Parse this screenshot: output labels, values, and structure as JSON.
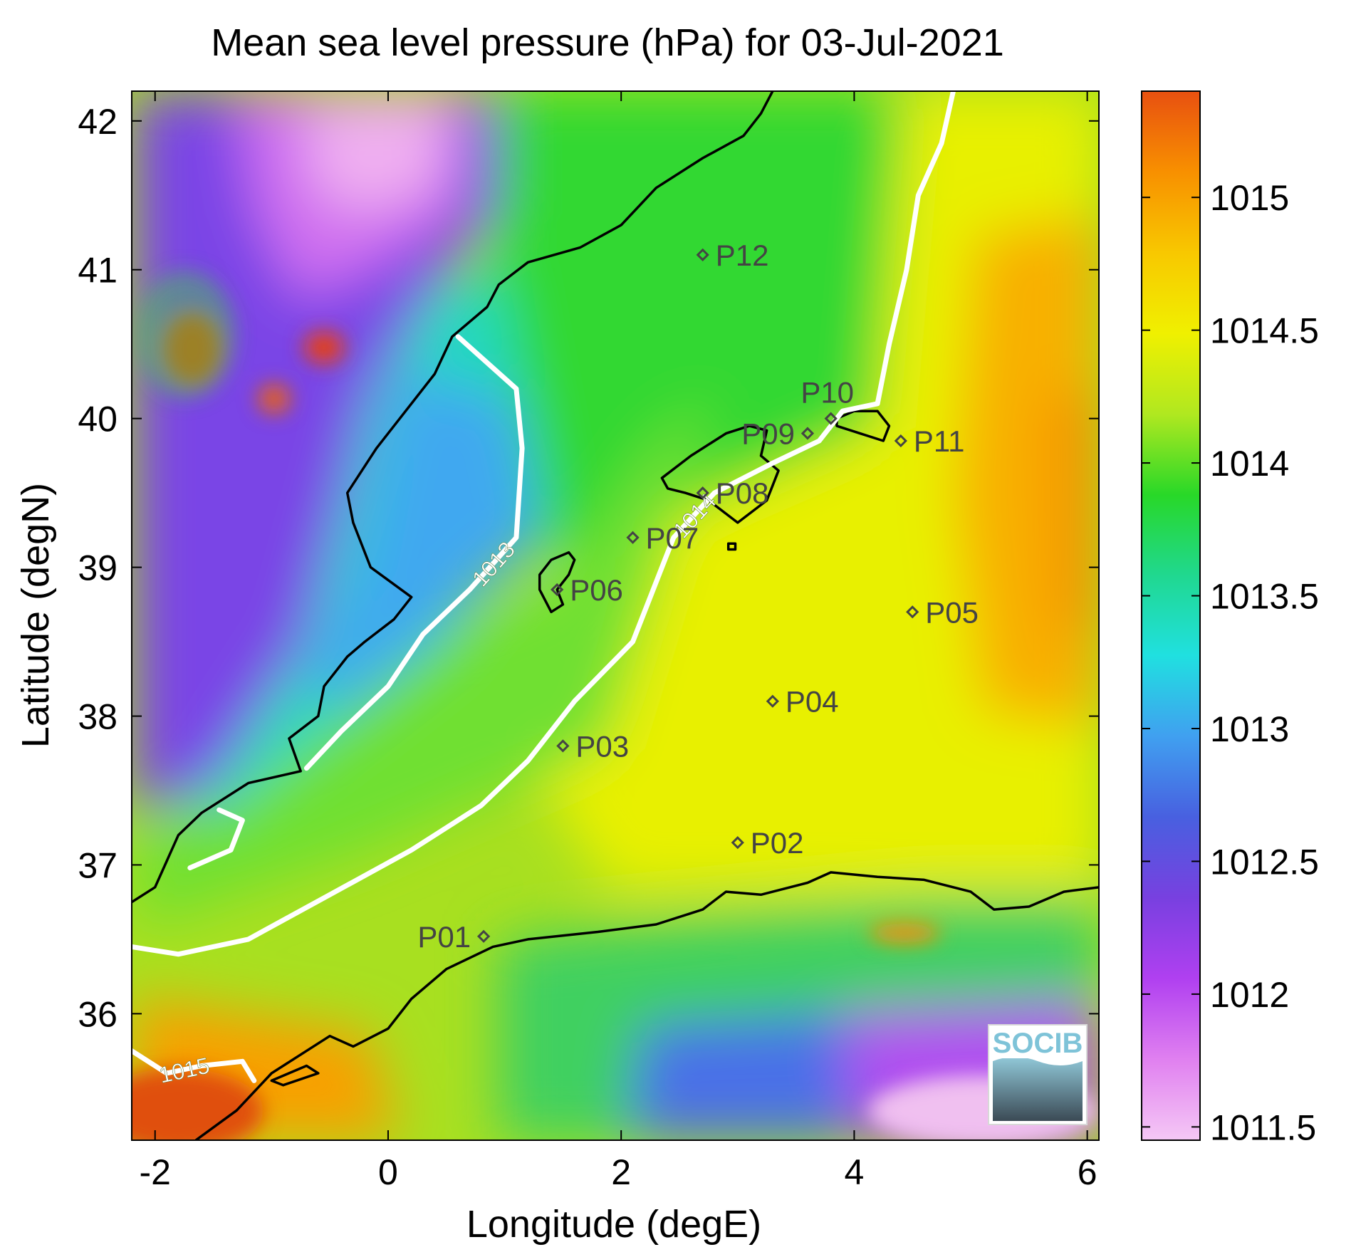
{
  "title": "Mean sea level pressure (hPa) for 03-Jul-2021",
  "xlabel": "Longitude (degE)",
  "ylabel": "Latitude (degN)",
  "logo_text": "SOCIB",
  "colorbar": {
    "min": 1011.45,
    "max": 1015.4,
    "ticks": [
      1011.5,
      1012,
      1012.5,
      1013,
      1013.5,
      1014,
      1014.5,
      1015
    ],
    "tick_labels": [
      "1011.5",
      "1012",
      "1012.5",
      "1013",
      "1013.5",
      "1014",
      "1014.5",
      "1015"
    ]
  },
  "chart_data": {
    "type": "heatmap",
    "xlim": [
      -2.2,
      6.1
    ],
    "ylim": [
      35.15,
      42.2
    ],
    "x_ticks": [
      -2,
      0,
      2,
      4,
      6
    ],
    "x_tick_labels": [
      "-2",
      "0",
      "2",
      "4",
      "6"
    ],
    "y_ticks": [
      36,
      37,
      38,
      39,
      40,
      41,
      42
    ],
    "y_tick_labels": [
      "36",
      "37",
      "38",
      "39",
      "40",
      "41",
      "42"
    ],
    "grid": false,
    "colormap_colors": [
      "#F5C8F5",
      "#E080F0",
      "#B040F0",
      "#7840E0",
      "#4860E0",
      "#40A0F0",
      "#20E0E0",
      "#20D890",
      "#28D828",
      "#B0E820",
      "#F0F000",
      "#F8C800",
      "#F89000",
      "#E85010"
    ],
    "contours": [
      {
        "level": 1013,
        "label": "1013",
        "points": [
          [
            0.6,
            40.55
          ],
          [
            1.1,
            40.2
          ],
          [
            1.15,
            39.8
          ],
          [
            1.1,
            39.2
          ],
          [
            0.7,
            38.85
          ],
          [
            0.3,
            38.55
          ],
          [
            0.0,
            38.2
          ],
          [
            -0.4,
            37.9
          ],
          [
            -0.7,
            37.65
          ]
        ]
      },
      {
        "level": 1013,
        "label": "",
        "points": [
          [
            -1.7,
            36.98
          ],
          [
            -1.35,
            37.1
          ],
          [
            -1.25,
            37.3
          ],
          [
            -1.45,
            37.37
          ]
        ]
      },
      {
        "level": 1014,
        "label": "1014",
        "points": [
          [
            -2.2,
            36.45
          ],
          [
            -1.8,
            36.4
          ],
          [
            -1.2,
            36.5
          ],
          [
            -0.5,
            36.8
          ],
          [
            0.2,
            37.1
          ],
          [
            0.8,
            37.4
          ],
          [
            1.2,
            37.7
          ],
          [
            1.6,
            38.1
          ],
          [
            2.1,
            38.5
          ],
          [
            2.45,
            39.2
          ],
          [
            2.8,
            39.5
          ],
          [
            3.3,
            39.7
          ],
          [
            3.7,
            39.85
          ],
          [
            3.9,
            40.05
          ],
          [
            4.2,
            40.1
          ],
          [
            4.3,
            40.5
          ],
          [
            4.45,
            41.0
          ],
          [
            4.55,
            41.5
          ],
          [
            4.75,
            41.85
          ],
          [
            4.85,
            42.2
          ]
        ]
      },
      {
        "level": 1015,
        "label": "1015",
        "points": [
          [
            -2.2,
            35.75
          ],
          [
            -1.9,
            35.6
          ],
          [
            -1.6,
            35.65
          ],
          [
            -1.25,
            35.68
          ],
          [
            -1.15,
            35.55
          ]
        ]
      }
    ],
    "stations": [
      {
        "name": "P01",
        "lon": 0.82,
        "lat": 36.52
      },
      {
        "name": "P02",
        "lon": 3.0,
        "lat": 37.15
      },
      {
        "name": "P03",
        "lon": 1.5,
        "lat": 37.8
      },
      {
        "name": "P04",
        "lon": 3.3,
        "lat": 38.1
      },
      {
        "name": "P05",
        "lon": 4.5,
        "lat": 38.7
      },
      {
        "name": "P06",
        "lon": 1.45,
        "lat": 38.85
      },
      {
        "name": "P07",
        "lon": 2.1,
        "lat": 39.2
      },
      {
        "name": "P08",
        "lon": 2.7,
        "lat": 39.5
      },
      {
        "name": "P09",
        "lon": 3.6,
        "lat": 39.9
      },
      {
        "name": "P10",
        "lon": 3.8,
        "lat": 40.0
      },
      {
        "name": "P11",
        "lon": 4.4,
        "lat": 39.85
      },
      {
        "name": "P12",
        "lon": 2.7,
        "lat": 41.1
      }
    ],
    "coastlines": [
      {
        "name": "iberia",
        "closed": false,
        "points": [
          [
            -2.2,
            36.75
          ],
          [
            -2.0,
            36.85
          ],
          [
            -1.8,
            37.2
          ],
          [
            -1.6,
            37.35
          ],
          [
            -1.2,
            37.55
          ],
          [
            -0.75,
            37.63
          ],
          [
            -0.85,
            37.85
          ],
          [
            -0.6,
            38.0
          ],
          [
            -0.55,
            38.2
          ],
          [
            -0.35,
            38.4
          ],
          [
            -0.2,
            38.5
          ],
          [
            0.05,
            38.65
          ],
          [
            0.2,
            38.8
          ],
          [
            -0.15,
            39.0
          ],
          [
            -0.3,
            39.3
          ],
          [
            -0.35,
            39.5
          ],
          [
            -0.1,
            39.8
          ],
          [
            0.1,
            40.0
          ],
          [
            0.4,
            40.3
          ],
          [
            0.55,
            40.55
          ],
          [
            0.85,
            40.75
          ],
          [
            0.95,
            40.9
          ],
          [
            1.2,
            41.05
          ],
          [
            1.65,
            41.15
          ],
          [
            2.0,
            41.3
          ],
          [
            2.3,
            41.55
          ],
          [
            2.7,
            41.75
          ],
          [
            3.05,
            41.9
          ],
          [
            3.2,
            42.05
          ],
          [
            3.3,
            42.2
          ]
        ]
      },
      {
        "name": "north-africa",
        "closed": false,
        "points": [
          [
            -1.65,
            35.15
          ],
          [
            -1.3,
            35.35
          ],
          [
            -1.0,
            35.6
          ],
          [
            -0.5,
            35.85
          ],
          [
            -0.3,
            35.78
          ],
          [
            0.0,
            35.9
          ],
          [
            0.2,
            36.1
          ],
          [
            0.5,
            36.3
          ],
          [
            0.9,
            36.45
          ],
          [
            1.2,
            36.5
          ],
          [
            1.8,
            36.55
          ],
          [
            2.3,
            36.6
          ],
          [
            2.7,
            36.7
          ],
          [
            2.9,
            36.82
          ],
          [
            3.2,
            36.8
          ],
          [
            3.6,
            36.88
          ],
          [
            3.8,
            36.95
          ],
          [
            4.2,
            36.92
          ],
          [
            4.6,
            36.9
          ],
          [
            5.0,
            36.82
          ],
          [
            5.2,
            36.7
          ],
          [
            5.5,
            36.72
          ],
          [
            5.8,
            36.82
          ],
          [
            6.1,
            36.85
          ]
        ]
      },
      {
        "name": "mallorca",
        "closed": true,
        "points": [
          [
            2.35,
            39.6
          ],
          [
            2.6,
            39.75
          ],
          [
            2.9,
            39.9
          ],
          [
            3.1,
            39.95
          ],
          [
            3.25,
            39.92
          ],
          [
            3.2,
            39.75
          ],
          [
            3.35,
            39.65
          ],
          [
            3.25,
            39.45
          ],
          [
            3.0,
            39.3
          ],
          [
            2.75,
            39.45
          ],
          [
            2.55,
            39.5
          ],
          [
            2.4,
            39.53
          ]
        ]
      },
      {
        "name": "menorca",
        "closed": true,
        "points": [
          [
            3.85,
            40.0
          ],
          [
            4.0,
            40.05
          ],
          [
            4.2,
            40.05
          ],
          [
            4.3,
            39.95
          ],
          [
            4.25,
            39.85
          ],
          [
            4.05,
            39.9
          ],
          [
            3.85,
            39.95
          ]
        ]
      },
      {
        "name": "ibiza",
        "closed": true,
        "points": [
          [
            1.3,
            38.95
          ],
          [
            1.4,
            39.05
          ],
          [
            1.55,
            39.1
          ],
          [
            1.6,
            39.05
          ],
          [
            1.55,
            38.95
          ],
          [
            1.45,
            38.85
          ],
          [
            1.5,
            38.75
          ],
          [
            1.4,
            38.7
          ],
          [
            1.3,
            38.85
          ]
        ]
      },
      {
        "name": "cabrera",
        "closed": true,
        "points": [
          [
            2.92,
            39.16
          ],
          [
            2.98,
            39.16
          ],
          [
            2.98,
            39.12
          ],
          [
            2.92,
            39.12
          ]
        ]
      },
      {
        "name": "alboran",
        "closed": true,
        "points": [
          [
            -1.0,
            35.55
          ],
          [
            -0.7,
            35.65
          ],
          [
            -0.6,
            35.6
          ],
          [
            -0.9,
            35.52
          ]
        ]
      }
    ]
  }
}
